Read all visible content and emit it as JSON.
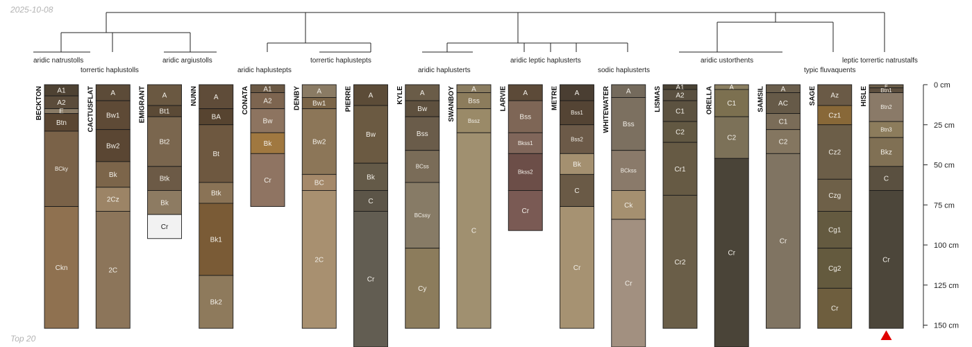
{
  "header": {
    "date": "2025-10-08"
  },
  "footer": {
    "caption": "Top 20"
  },
  "depth_axis": {
    "unit": "cm",
    "ticks": [
      {
        "value": 0,
        "label": "0 cm"
      },
      {
        "value": 25,
        "label": "25 cm"
      },
      {
        "value": 50,
        "label": "50 cm"
      },
      {
        "value": 75,
        "label": "75 cm"
      },
      {
        "value": 100,
        "label": "100 cm"
      },
      {
        "value": 125,
        "label": "125 cm"
      },
      {
        "value": 150,
        "label": "150 cm"
      }
    ]
  },
  "group_labels": [
    "aridic natrustolls",
    "torrertic haplustolls",
    "aridic argiustolls",
    "aridic haplustepts",
    "torrertic haplustepts",
    "aridic haplusterts",
    "aridic leptic haplusterts",
    "sodic haplusterts",
    "aridic ustorthents",
    "typic fluvaquents",
    "leptic torrertic natrustalfs"
  ],
  "profiles": [
    {
      "name": "BECKTON",
      "horizons": [
        {
          "name": "A1",
          "top": 0,
          "bottom": 7,
          "color": "#4e4233"
        },
        {
          "name": "A2",
          "top": 7,
          "bottom": 15,
          "color": "#5b4c3b"
        },
        {
          "name": "E",
          "top": 15,
          "bottom": 18,
          "color": "#8a7b66"
        },
        {
          "name": "Btn",
          "top": 18,
          "bottom": 29,
          "color": "#5a4632"
        },
        {
          "name": "BCky",
          "top": 29,
          "bottom": 76,
          "color": "#7a6248"
        },
        {
          "name": "Ckn",
          "top": 76,
          "bottom": 152,
          "color": "#8f7150"
        }
      ]
    },
    {
      "name": "CACTUSFLAT",
      "horizons": [
        {
          "name": "A",
          "top": 0,
          "bottom": 10,
          "color": "#5c4b38"
        },
        {
          "name": "Bw1",
          "top": 10,
          "bottom": 28,
          "color": "#5e4a36"
        },
        {
          "name": "Bw2",
          "top": 28,
          "bottom": 48,
          "color": "#5a4633"
        },
        {
          "name": "Bk",
          "top": 48,
          "bottom": 64,
          "color": "#7c654a"
        },
        {
          "name": "2Cz",
          "top": 64,
          "bottom": 79,
          "color": "#9c8466"
        },
        {
          "name": "2C",
          "top": 79,
          "bottom": 152,
          "color": "#8c755a"
        }
      ]
    },
    {
      "name": "EMIGRANT",
      "horizons": [
        {
          "name": "A",
          "top": 0,
          "bottom": 13,
          "color": "#6a5841"
        },
        {
          "name": "Bt1",
          "top": 13,
          "bottom": 20,
          "color": "#5b4a36"
        },
        {
          "name": "Bt2",
          "top": 20,
          "bottom": 51,
          "color": "#7a664e"
        },
        {
          "name": "Btk",
          "top": 51,
          "bottom": 66,
          "color": "#6c5a46"
        },
        {
          "name": "Bk",
          "top": 66,
          "bottom": 81,
          "color": "#8d7b62"
        },
        {
          "name": "Cr",
          "top": 81,
          "bottom": 96,
          "color": "#f2f2f2"
        }
      ]
    },
    {
      "name": "NUNN",
      "horizons": [
        {
          "name": "A",
          "top": 0,
          "bottom": 15,
          "color": "#5f4c39"
        },
        {
          "name": "BA",
          "top": 15,
          "bottom": 25,
          "color": "#574430"
        },
        {
          "name": "Bt",
          "top": 25,
          "bottom": 61,
          "color": "#6e5840"
        },
        {
          "name": "Btk",
          "top": 61,
          "bottom": 74,
          "color": "#8a7356"
        },
        {
          "name": "Bk1",
          "top": 74,
          "bottom": 119,
          "color": "#7a5b36"
        },
        {
          "name": "Bk2",
          "top": 119,
          "bottom": 152,
          "color": "#8e7a5c"
        }
      ]
    },
    {
      "name": "CONATA",
      "horizons": [
        {
          "name": "A1",
          "top": 0,
          "bottom": 5,
          "color": "#6a5844"
        },
        {
          "name": "A2",
          "top": 5,
          "bottom": 15,
          "color": "#7d6550"
        },
        {
          "name": "Bw",
          "top": 15,
          "bottom": 30,
          "color": "#8d7460"
        },
        {
          "name": "Bk",
          "top": 30,
          "bottom": 43,
          "color": "#a07840"
        },
        {
          "name": "Cr",
          "top": 43,
          "bottom": 76,
          "color": "#8f7462"
        }
      ]
    },
    {
      "name": "DENBY",
      "horizons": [
        {
          "name": "A",
          "top": 0,
          "bottom": 8,
          "color": "#8a7b64"
        },
        {
          "name": "Bw1",
          "top": 8,
          "bottom": 15,
          "color": "#7b6548"
        },
        {
          "name": "Bw2",
          "top": 15,
          "bottom": 56,
          "color": "#8c7658"
        },
        {
          "name": "BC",
          "top": 56,
          "bottom": 66,
          "color": "#a5896a"
        },
        {
          "name": "2C",
          "top": 66,
          "bottom": 152,
          "color": "#a89070"
        }
      ]
    },
    {
      "name": "PIERRE",
      "horizons": [
        {
          "name": "A",
          "top": 0,
          "bottom": 13,
          "color": "#5c4c38"
        },
        {
          "name": "Bw",
          "top": 13,
          "bottom": 49,
          "color": "#6b5a42"
        },
        {
          "name": "Bk",
          "top": 49,
          "bottom": 66,
          "color": "#645a48"
        },
        {
          "name": "C",
          "top": 66,
          "bottom": 79,
          "color": "#5c5548"
        },
        {
          "name": "Cr",
          "top": 79,
          "bottom": 165,
          "color": "#625d52"
        }
      ]
    },
    {
      "name": "KYLE",
      "horizons": [
        {
          "name": "A",
          "top": 0,
          "bottom": 10,
          "color": "#6a5c48"
        },
        {
          "name": "Bw",
          "top": 10,
          "bottom": 20,
          "color": "#5e503e"
        },
        {
          "name": "Bss",
          "top": 20,
          "bottom": 41,
          "color": "#6a5c4a"
        },
        {
          "name": "BCss",
          "top": 41,
          "bottom": 61,
          "color": "#7a6c58"
        },
        {
          "name": "BCssy",
          "top": 61,
          "bottom": 102,
          "color": "#877b66"
        },
        {
          "name": "Cy",
          "top": 102,
          "bottom": 152,
          "color": "#8c7c5c"
        }
      ]
    },
    {
      "name": "SWANBOY",
      "horizons": [
        {
          "name": "A",
          "top": 0,
          "bottom": 5,
          "color": "#8a7c60"
        },
        {
          "name": "Bss",
          "top": 5,
          "bottom": 15,
          "color": "#8c7c5c"
        },
        {
          "name": "Bssz",
          "top": 15,
          "bottom": 30,
          "color": "#9a8a68"
        },
        {
          "name": "C",
          "top": 30,
          "bottom": 152,
          "color": "#a09070"
        }
      ]
    },
    {
      "name": "LARVIE",
      "horizons": [
        {
          "name": "A",
          "top": 0,
          "bottom": 10,
          "color": "#5c4a38"
        },
        {
          "name": "Bss",
          "top": 10,
          "bottom": 30,
          "color": "#7e6656"
        },
        {
          "name": "Bkss1",
          "top": 30,
          "bottom": 43,
          "color": "#80665a"
        },
        {
          "name": "Bkss2",
          "top": 43,
          "bottom": 66,
          "color": "#6c4e48"
        },
        {
          "name": "Cr",
          "top": 66,
          "bottom": 91,
          "color": "#7a5a54"
        }
      ]
    },
    {
      "name": "METRE",
      "horizons": [
        {
          "name": "A",
          "top": 0,
          "bottom": 10,
          "color": "#4a3e32"
        },
        {
          "name": "Bss1",
          "top": 10,
          "bottom": 25,
          "color": "#544434"
        },
        {
          "name": "Bss2",
          "top": 25,
          "bottom": 43,
          "color": "#6c5a48"
        },
        {
          "name": "Bk",
          "top": 43,
          "bottom": 56,
          "color": "#a49070"
        },
        {
          "name": "C",
          "top": 56,
          "bottom": 76,
          "color": "#6a5a46"
        },
        {
          "name": "Cr",
          "top": 76,
          "bottom": 152,
          "color": "#a69272"
        }
      ]
    },
    {
      "name": "WHITEWATER",
      "horizons": [
        {
          "name": "A",
          "top": 0,
          "bottom": 8,
          "color": "#746a5c"
        },
        {
          "name": "Bss",
          "top": 8,
          "bottom": 41,
          "color": "#7c7060"
        },
        {
          "name": "BCkss",
          "top": 41,
          "bottom": 66,
          "color": "#8a7a6a"
        },
        {
          "name": "Ck",
          "top": 66,
          "bottom": 84,
          "color": "#a59070"
        },
        {
          "name": "Cr",
          "top": 84,
          "bottom": 165,
          "color": "#a29080"
        }
      ]
    },
    {
      "name": "LISMAS",
      "horizons": [
        {
          "name": "A1",
          "top": 0,
          "bottom": 3,
          "color": "#4a4234"
        },
        {
          "name": "A2",
          "top": 3,
          "bottom": 10,
          "color": "#5a5040"
        },
        {
          "name": "C1",
          "top": 10,
          "bottom": 23,
          "color": "#5c5240"
        },
        {
          "name": "C2",
          "top": 23,
          "bottom": 36,
          "color": "#625842"
        },
        {
          "name": "Cr1",
          "top": 36,
          "bottom": 69,
          "color": "#665a44"
        },
        {
          "name": "Cr2",
          "top": 69,
          "bottom": 152,
          "color": "#6a5e48"
        }
      ]
    },
    {
      "name": "ORELLA",
      "horizons": [
        {
          "name": "A",
          "top": 0,
          "bottom": 3,
          "color": "#8a7e60"
        },
        {
          "name": "C1",
          "top": 3,
          "bottom": 20,
          "color": "#7c7050"
        },
        {
          "name": "C2",
          "top": 20,
          "bottom": 46,
          "color": "#7c7158"
        },
        {
          "name": "Cr",
          "top": 46,
          "bottom": 165,
          "color": "#4a4438"
        }
      ]
    },
    {
      "name": "SAMSIL",
      "horizons": [
        {
          "name": "A",
          "top": 0,
          "bottom": 5,
          "color": "#6a5e4c"
        },
        {
          "name": "AC",
          "top": 5,
          "bottom": 18,
          "color": "#665a48"
        },
        {
          "name": "C1",
          "top": 18,
          "bottom": 28,
          "color": "#7a6c58"
        },
        {
          "name": "C2",
          "top": 28,
          "bottom": 43,
          "color": "#847660"
        },
        {
          "name": "Cr",
          "top": 43,
          "bottom": 152,
          "color": "#807462"
        }
      ]
    },
    {
      "name": "SAGE",
      "horizons": [
        {
          "name": "Az",
          "top": 0,
          "bottom": 13,
          "color": "#6a5a46"
        },
        {
          "name": "Cz1",
          "top": 13,
          "bottom": 25,
          "color": "#886838"
        },
        {
          "name": "Cz2",
          "top": 25,
          "bottom": 59,
          "color": "#6c5e48"
        },
        {
          "name": "Czg",
          "top": 59,
          "bottom": 79,
          "color": "#6e6048"
        },
        {
          "name": "Cg1",
          "top": 79,
          "bottom": 102,
          "color": "#645a40"
        },
        {
          "name": "Cg2",
          "top": 102,
          "bottom": 127,
          "color": "#645a3e"
        },
        {
          "name": "Cr",
          "top": 127,
          "bottom": 152,
          "color": "#6e5e3e"
        }
      ]
    },
    {
      "name": "HISLE",
      "horizons": [
        {
          "name": "E",
          "top": 0,
          "bottom": 2,
          "color": "#6a5c48"
        },
        {
          "name": "Btn1",
          "top": 2,
          "bottom": 5,
          "color": "#5c4e3e"
        },
        {
          "name": "Btn2",
          "top": 5,
          "bottom": 23,
          "color": "#8a7a68"
        },
        {
          "name": "Btn3",
          "top": 23,
          "bottom": 33,
          "color": "#8c7c5c"
        },
        {
          "name": "Bkz",
          "top": 33,
          "bottom": 51,
          "color": "#807054"
        },
        {
          "name": "C",
          "top": 51,
          "bottom": 66,
          "color": "#5a5040"
        },
        {
          "name": "Cr",
          "top": 66,
          "bottom": 152,
          "color": "#4c463a"
        }
      ]
    }
  ],
  "marker_color": "#e00000"
}
